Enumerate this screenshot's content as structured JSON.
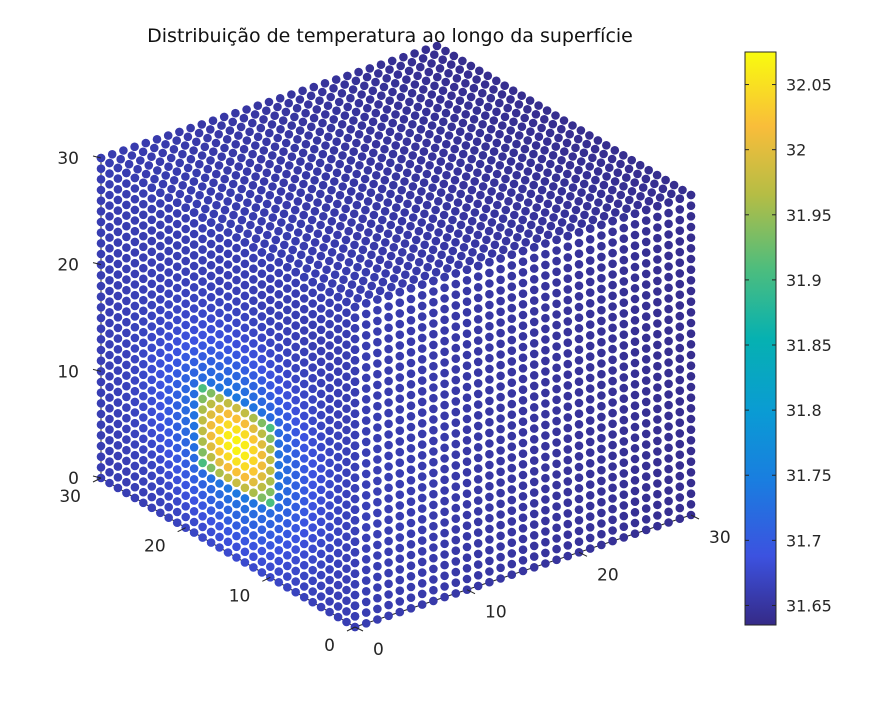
{
  "chart_data": {
    "type": "scatter",
    "subtype": "3d-surface-scatter",
    "title": "Distribuição de temperatura ao longo da superfície",
    "xlabel": "",
    "ylabel": "",
    "zlabel": "",
    "x_ticks": [
      "0",
      "10",
      "20",
      "30"
    ],
    "y_ticks": [
      "0",
      "10",
      "20",
      "30"
    ],
    "z_ticks": [
      "0",
      "10",
      "20",
      "30"
    ],
    "xlim": [
      0,
      30
    ],
    "ylim": [
      0,
      30
    ],
    "zlim": [
      0,
      30
    ],
    "grid_points_per_edge": 31,
    "baseline_temperature": 31.66,
    "hotspot": {
      "face": "x = 0",
      "y_range": [
        9,
        19
      ],
      "z_range": [
        6,
        15
      ],
      "peak_temperature": 32.07
    },
    "colorbar": {
      "min": 31.635,
      "max": 32.075,
      "ticks": [
        "31.65",
        "31.7",
        "31.75",
        "31.8",
        "31.85",
        "31.9",
        "31.95",
        "32",
        "32.05"
      ],
      "colormap": "parula"
    }
  }
}
